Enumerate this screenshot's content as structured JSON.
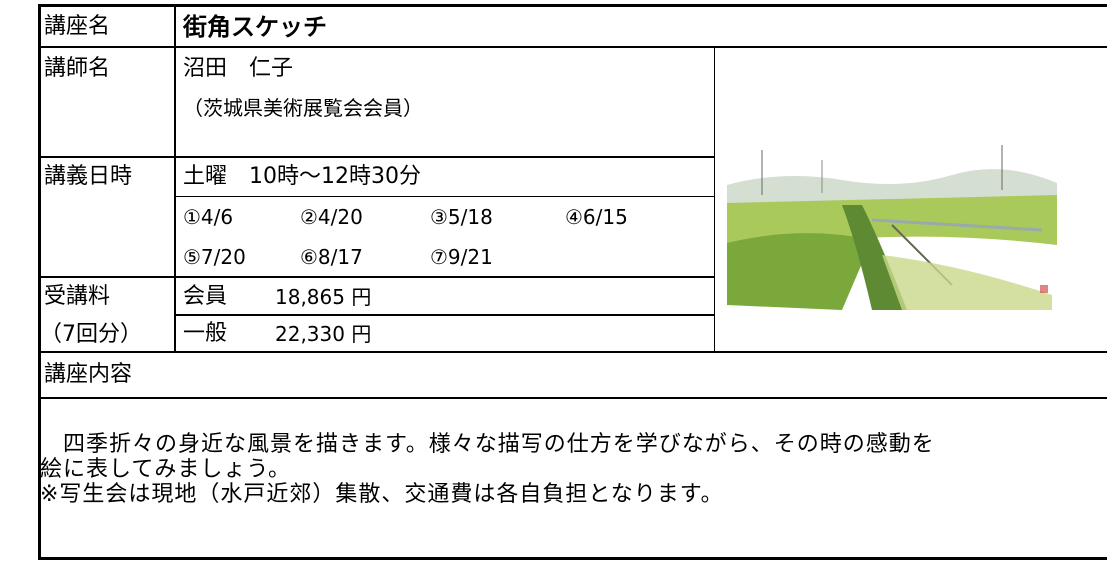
{
  "course_name": {
    "label": "講座名",
    "value": "街角スケッチ"
  },
  "instructor": {
    "label": "講師名",
    "name": "沼田　仁子",
    "affiliation": "（茨城県美術展覧会会員）"
  },
  "schedule": {
    "label": "講義日時",
    "time": "土曜　10時～12時30分",
    "dates": [
      "①4/6",
      "②4/20",
      "③5/18",
      "④6/15",
      "⑤7/20",
      "⑥8/17",
      "⑦9/21"
    ]
  },
  "fee": {
    "label": "受講料",
    "label_note": "（7回分）",
    "rows": [
      {
        "type": "会員",
        "amount": "18,865 円"
      },
      {
        "type": "一般",
        "amount": "22,330 円"
      }
    ]
  },
  "content": {
    "label": "講座内容",
    "lines": [
      "　四季折々の身近な風景を描きます。様々な描写の仕方を学びながら、その時の感動を",
      "絵に表してみましょう。",
      "※写生会は現地（水戸近郊）集散、交通費は各自負担となります。"
    ]
  }
}
